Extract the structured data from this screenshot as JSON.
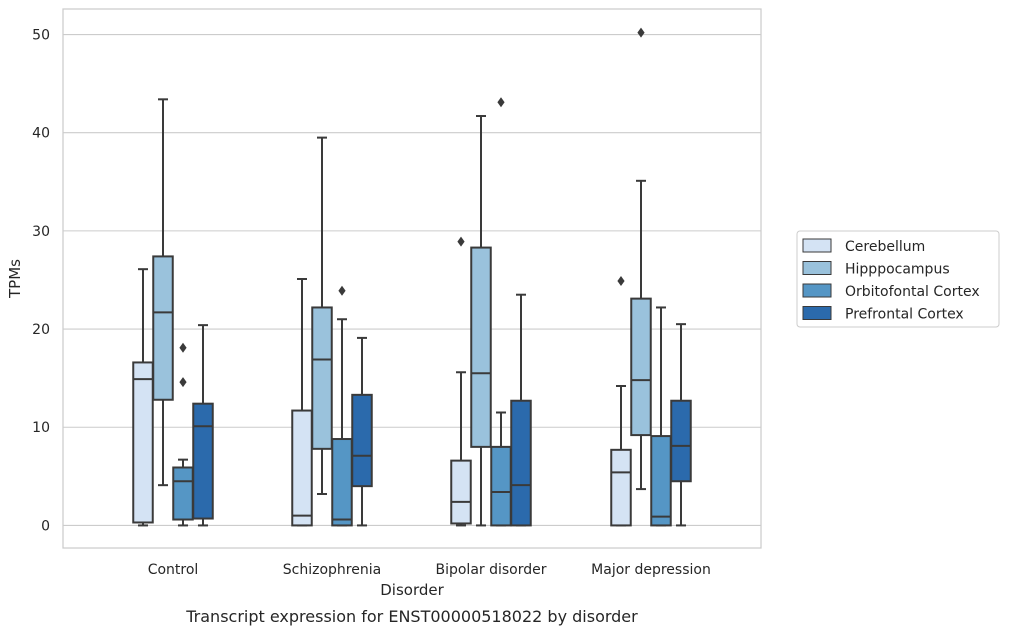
{
  "chart_data": {
    "type": "boxplot",
    "caption": "Transcript expression for ENST00000518022 by disorder",
    "xlabel": "Disorder",
    "ylabel": "TPMs",
    "ylim": [
      -2.3,
      52.6
    ],
    "yticks": [
      0,
      10,
      20,
      30,
      40,
      50
    ],
    "grid": true,
    "legend_position": "right",
    "categories": [
      "Control",
      "Schizophrenia",
      "Bipolar disorder",
      "Major depression"
    ],
    "series": [
      {
        "name": "Cerebellum",
        "color": "#d4e3f4",
        "boxes": [
          {
            "whisker_low": 0,
            "q1": 0.3,
            "median": 14.9,
            "q3": 16.6,
            "whisker_high": 26.1,
            "outliers": []
          },
          {
            "whisker_low": 0,
            "q1": 0,
            "median": 1.0,
            "q3": 11.7,
            "whisker_high": 25.1,
            "outliers": []
          },
          {
            "whisker_low": 0,
            "q1": 0.2,
            "median": 2.4,
            "q3": 6.6,
            "whisker_high": 15.6,
            "outliers": [
              28.9
            ]
          },
          {
            "whisker_low": 0,
            "q1": 0,
            "median": 5.4,
            "q3": 7.7,
            "whisker_high": 14.2,
            "outliers": [
              24.9
            ]
          }
        ]
      },
      {
        "name": "Hipppocampus",
        "color": "#9ac2dc",
        "boxes": [
          {
            "whisker_low": 4.1,
            "q1": 12.8,
            "median": 21.7,
            "q3": 27.4,
            "whisker_high": 43.4,
            "outliers": []
          },
          {
            "whisker_low": 3.2,
            "q1": 7.8,
            "median": 16.9,
            "q3": 22.2,
            "whisker_high": 39.5,
            "outliers": []
          },
          {
            "whisker_low": 0,
            "q1": 8.0,
            "median": 15.5,
            "q3": 28.3,
            "whisker_high": 41.7,
            "outliers": []
          },
          {
            "whisker_low": 3.7,
            "q1": 9.2,
            "median": 14.8,
            "q3": 23.1,
            "whisker_high": 35.1,
            "outliers": [
              50.2
            ]
          }
        ]
      },
      {
        "name": "Orbitofontal Cortex",
        "color": "#5596c5",
        "boxes": [
          {
            "whisker_low": 0,
            "q1": 0.6,
            "median": 4.5,
            "q3": 5.9,
            "whisker_high": 6.7,
            "outliers": [
              14.6,
              18.1
            ]
          },
          {
            "whisker_low": 0,
            "q1": 0,
            "median": 0.6,
            "q3": 8.8,
            "whisker_high": 21.0,
            "outliers": [
              23.9
            ]
          },
          {
            "whisker_low": 0,
            "q1": 0,
            "median": 3.4,
            "q3": 8.0,
            "whisker_high": 11.5,
            "outliers": [
              43.1
            ]
          },
          {
            "whisker_low": 0,
            "q1": 0,
            "median": 0.9,
            "q3": 9.1,
            "whisker_high": 22.2,
            "outliers": []
          }
        ]
      },
      {
        "name": "Prefrontal Cortex",
        "color": "#2b6aac",
        "boxes": [
          {
            "whisker_low": 0,
            "q1": 0.7,
            "median": 10.1,
            "q3": 12.4,
            "whisker_high": 20.4,
            "outliers": []
          },
          {
            "whisker_low": 0,
            "q1": 4.0,
            "median": 7.1,
            "q3": 13.3,
            "whisker_high": 19.1,
            "outliers": []
          },
          {
            "whisker_low": 0,
            "q1": 0,
            "median": 4.1,
            "q3": 12.7,
            "whisker_high": 23.5,
            "outliers": []
          },
          {
            "whisker_low": 0,
            "q1": 4.5,
            "median": 8.1,
            "q3": 12.7,
            "whisker_high": 20.5,
            "outliers": []
          }
        ]
      }
    ]
  }
}
